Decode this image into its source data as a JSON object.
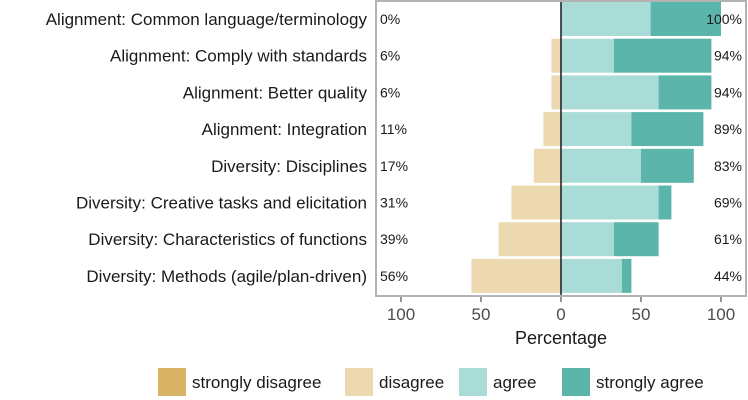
{
  "chart_data": {
    "type": "bar",
    "orientation": "horizontal-diverging",
    "xlabel": "Percentage",
    "xlim": [
      -100,
      100
    ],
    "x_ticks": [
      -100,
      -50,
      0,
      50,
      100
    ],
    "x_tick_labels": [
      "100",
      "50",
      "0",
      "50",
      "100"
    ],
    "grid": false,
    "legend_position": "bottom",
    "categories": [
      "Alignment: Common language/terminology",
      "Alignment: Comply with standards",
      "Alignment: Better quality",
      "Alignment: Integration",
      "Diversity: Disciplines",
      "Diversity: Creative tasks and elicitation",
      "Diversity: Characteristics of functions",
      "Diversity: Methods (agile/plan-driven)"
    ],
    "series": [
      {
        "name": "strongly disagree",
        "color": "#D9B365",
        "values": [
          0,
          0,
          0,
          0,
          0,
          0,
          0,
          0
        ]
      },
      {
        "name": "disagree",
        "color": "#EDD9B0",
        "values": [
          0,
          6,
          6,
          11,
          17,
          31,
          39,
          56
        ]
      },
      {
        "name": "agree",
        "color": "#A9DCD6",
        "values": [
          56,
          33,
          61,
          44,
          50,
          61,
          33,
          38
        ]
      },
      {
        "name": "strongly agree",
        "color": "#5BB5AA",
        "values": [
          44,
          61,
          33,
          45,
          33,
          8,
          28,
          6
        ]
      }
    ],
    "left_labels": [
      "0%",
      "6%",
      "6%",
      "11%",
      "17%",
      "31%",
      "39%",
      "56%"
    ],
    "right_labels": [
      "100%",
      "94%",
      "94%",
      "89%",
      "83%",
      "69%",
      "61%",
      "44%"
    ]
  }
}
